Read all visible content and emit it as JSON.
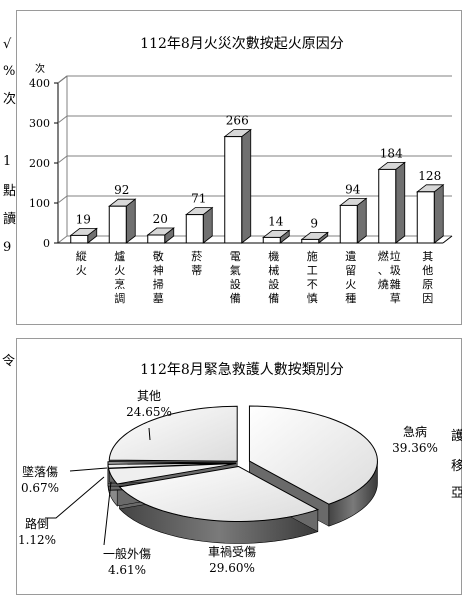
{
  "side_text": {
    "left_chars": [
      "√",
      "%",
      "次",
      "1",
      "點",
      "讀",
      "9"
    ],
    "left_chars_lower": [
      "令"
    ],
    "right_chars": [
      "護",
      "移",
      "亞"
    ]
  },
  "chart_data": [
    {
      "type": "bar",
      "title": "112年8月火災次數按起火原因分",
      "ylabel": "次",
      "categories": [
        "縱火",
        "爐火烹調",
        "敬神掃墓",
        "菸蒂",
        "電氣設備",
        "機械設備",
        "施工不慎",
        "遺留火種",
        "燃、燒垃圾雜草",
        "其他原因"
      ],
      "values": [
        19,
        92,
        20,
        71,
        266,
        14,
        9,
        94,
        184,
        128
      ],
      "value_labels": [
        "19",
        "92",
        "20",
        "71",
        "266",
        "14",
        "9",
        "94",
        "184",
        "128"
      ],
      "yticks": [
        "0",
        "100",
        "200",
        "300",
        "400"
      ],
      "ylim": [
        0,
        400
      ],
      "grid": true,
      "colors": {
        "bar_face": "#ffffff",
        "bar_side": "#707070",
        "bar_top": "#d8d8d8",
        "grid": "#808080"
      }
    },
    {
      "type": "pie",
      "title": "112年8月緊急救護人數按類別分",
      "slices": [
        {
          "label": "急病",
          "value": 39.36,
          "percent_label": "39.36%"
        },
        {
          "label": "車禍受傷",
          "value": 29.6,
          "percent_label": "29.60%"
        },
        {
          "label": "一般外傷",
          "value": 4.61,
          "percent_label": "4.61%"
        },
        {
          "label": "路倒",
          "value": 1.12,
          "percent_label": "1.12%"
        },
        {
          "label": "墜落傷",
          "value": 0.67,
          "percent_label": "0.67%"
        },
        {
          "label": "其他",
          "value": 24.65,
          "percent_label": "24.65%"
        }
      ],
      "colors": {
        "face_light": "#f4f4f4",
        "face_dark": "#d8d8d8",
        "side": "#5a5a5a",
        "small_slice": "#8a8a8a"
      }
    }
  ]
}
